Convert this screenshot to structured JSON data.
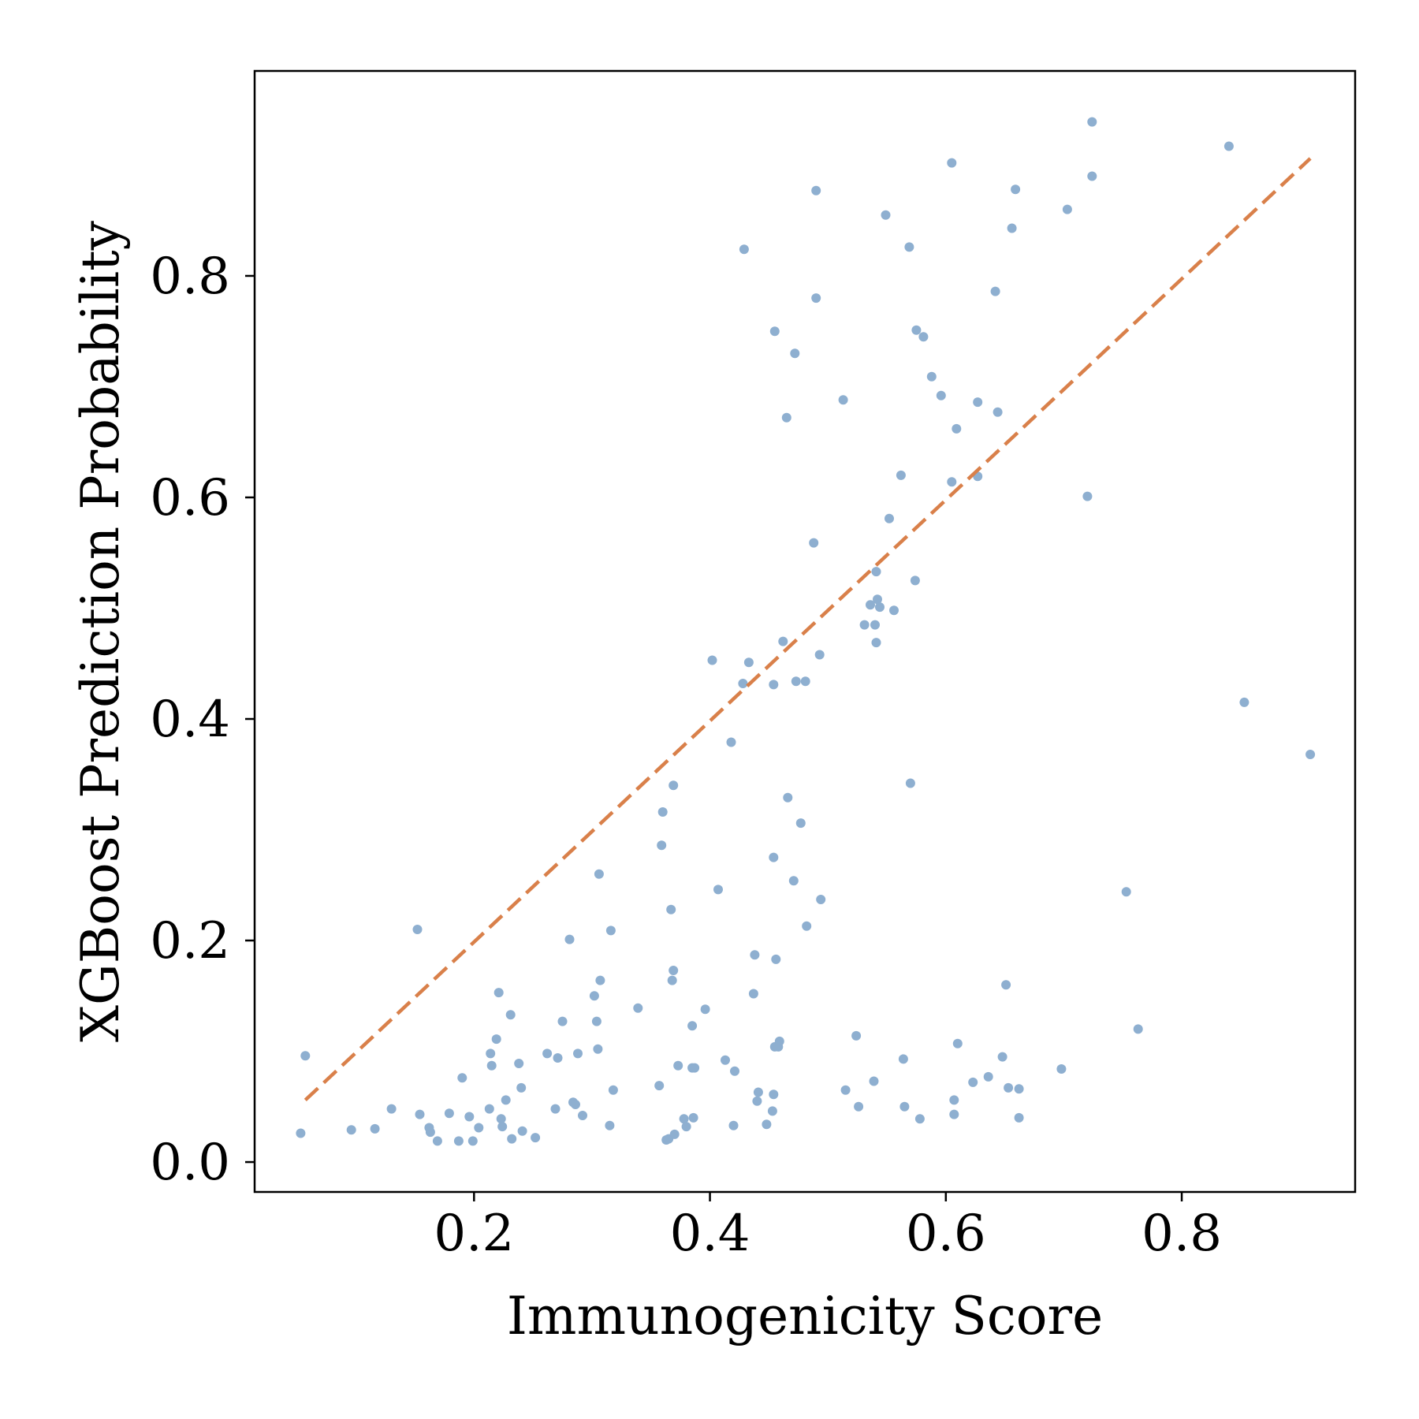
{
  "chart_data": {
    "type": "scatter",
    "title": "",
    "xlabel": "Immunogenicity Score",
    "ylabel": "XGBoost Prediction Probability",
    "xlim": [
      0.014,
      0.947
    ],
    "ylim": [
      -0.027,
      0.985
    ],
    "xticks": [
      0.2,
      0.4,
      0.6,
      0.8
    ],
    "yticks": [
      0.0,
      0.2,
      0.4,
      0.6,
      0.8
    ],
    "xtick_labels": [
      "0.2",
      "0.4",
      "0.6",
      "0.8"
    ],
    "ytick_labels": [
      "0.0",
      "0.2",
      "0.4",
      "0.6",
      "0.8"
    ],
    "grid": false,
    "legend": "none",
    "colors": {
      "points": "#8eafd0",
      "trend": "#d9804a",
      "axes": "#000000"
    },
    "trend_line": {
      "style": "dashed",
      "x": [
        0.057,
        0.909
      ],
      "y": [
        0.056,
        0.906
      ]
    },
    "series": [
      {
        "values": [
          [
            0.057,
            0.096
          ],
          [
            0.053,
            0.026
          ],
          [
            0.096,
            0.029
          ],
          [
            0.116,
            0.03
          ],
          [
            0.13,
            0.048
          ],
          [
            0.152,
            0.21
          ],
          [
            0.154,
            0.043
          ],
          [
            0.162,
            0.031
          ],
          [
            0.163,
            0.027
          ],
          [
            0.169,
            0.019
          ],
          [
            0.179,
            0.044
          ],
          [
            0.187,
            0.019
          ],
          [
            0.19,
            0.076
          ],
          [
            0.196,
            0.041
          ],
          [
            0.199,
            0.019
          ],
          [
            0.204,
            0.031
          ],
          [
            0.213,
            0.048
          ],
          [
            0.214,
            0.098
          ],
          [
            0.215,
            0.087
          ],
          [
            0.219,
            0.111
          ],
          [
            0.221,
            0.153
          ],
          [
            0.223,
            0.039
          ],
          [
            0.224,
            0.032
          ],
          [
            0.227,
            0.056
          ],
          [
            0.231,
            0.133
          ],
          [
            0.232,
            0.021
          ],
          [
            0.238,
            0.089
          ],
          [
            0.24,
            0.067
          ],
          [
            0.241,
            0.028
          ],
          [
            0.252,
            0.022
          ],
          [
            0.262,
            0.098
          ],
          [
            0.269,
            0.048
          ],
          [
            0.271,
            0.094
          ],
          [
            0.275,
            0.127
          ],
          [
            0.281,
            0.201
          ],
          [
            0.284,
            0.054
          ],
          [
            0.286,
            0.052
          ],
          [
            0.288,
            0.098
          ],
          [
            0.292,
            0.042
          ],
          [
            0.302,
            0.15
          ],
          [
            0.304,
            0.127
          ],
          [
            0.305,
            0.102
          ],
          [
            0.306,
            0.26
          ],
          [
            0.307,
            0.164
          ],
          [
            0.315,
            0.033
          ],
          [
            0.316,
            0.209
          ],
          [
            0.318,
            0.065
          ],
          [
            0.339,
            0.139
          ],
          [
            0.357,
            0.069
          ],
          [
            0.359,
            0.286
          ],
          [
            0.36,
            0.316
          ],
          [
            0.363,
            0.02
          ],
          [
            0.365,
            0.021
          ],
          [
            0.367,
            0.228
          ],
          [
            0.368,
            0.164
          ],
          [
            0.369,
            0.34
          ],
          [
            0.369,
            0.173
          ],
          [
            0.37,
            0.025
          ],
          [
            0.373,
            0.087
          ],
          [
            0.378,
            0.039
          ],
          [
            0.38,
            0.032
          ],
          [
            0.385,
            0.123
          ],
          [
            0.385,
            0.085
          ],
          [
            0.386,
            0.04
          ],
          [
            0.387,
            0.085
          ],
          [
            0.396,
            0.138
          ],
          [
            0.402,
            0.453
          ],
          [
            0.407,
            0.246
          ],
          [
            0.413,
            0.092
          ],
          [
            0.418,
            0.379
          ],
          [
            0.42,
            0.033
          ],
          [
            0.421,
            0.082
          ],
          [
            0.428,
            0.432
          ],
          [
            0.429,
            0.824
          ],
          [
            0.433,
            0.451
          ],
          [
            0.437,
            0.152
          ],
          [
            0.438,
            0.187
          ],
          [
            0.44,
            0.055
          ],
          [
            0.441,
            0.063
          ],
          [
            0.448,
            0.034
          ],
          [
            0.453,
            0.046
          ],
          [
            0.454,
            0.061
          ],
          [
            0.454,
            0.275
          ],
          [
            0.454,
            0.431
          ],
          [
            0.455,
            0.75
          ],
          [
            0.455,
            0.104
          ],
          [
            0.456,
            0.183
          ],
          [
            0.458,
            0.104
          ],
          [
            0.459,
            0.109
          ],
          [
            0.462,
            0.47
          ],
          [
            0.465,
            0.672
          ],
          [
            0.466,
            0.329
          ],
          [
            0.471,
            0.254
          ],
          [
            0.472,
            0.73
          ],
          [
            0.473,
            0.434
          ],
          [
            0.477,
            0.306
          ],
          [
            0.481,
            0.434
          ],
          [
            0.482,
            0.213
          ],
          [
            0.488,
            0.559
          ],
          [
            0.49,
            0.877
          ],
          [
            0.49,
            0.78
          ],
          [
            0.493,
            0.458
          ],
          [
            0.494,
            0.237
          ],
          [
            0.513,
            0.688
          ],
          [
            0.515,
            0.065
          ],
          [
            0.524,
            0.114
          ],
          [
            0.526,
            0.05
          ],
          [
            0.531,
            0.485
          ],
          [
            0.536,
            0.503
          ],
          [
            0.539,
            0.073
          ],
          [
            0.54,
            0.485
          ],
          [
            0.541,
            0.533
          ],
          [
            0.541,
            0.469
          ],
          [
            0.542,
            0.508
          ],
          [
            0.544,
            0.501
          ],
          [
            0.549,
            0.855
          ],
          [
            0.552,
            0.581
          ],
          [
            0.556,
            0.498
          ],
          [
            0.562,
            0.62
          ],
          [
            0.564,
            0.093
          ],
          [
            0.565,
            0.05
          ],
          [
            0.569,
            0.826
          ],
          [
            0.57,
            0.342
          ],
          [
            0.574,
            0.525
          ],
          [
            0.575,
            0.751
          ],
          [
            0.578,
            0.039
          ],
          [
            0.581,
            0.745
          ],
          [
            0.588,
            0.709
          ],
          [
            0.596,
            0.692
          ],
          [
            0.605,
            0.902
          ],
          [
            0.605,
            0.614
          ],
          [
            0.607,
            0.056
          ],
          [
            0.607,
            0.043
          ],
          [
            0.609,
            0.662
          ],
          [
            0.61,
            0.107
          ],
          [
            0.623,
            0.072
          ],
          [
            0.627,
            0.686
          ],
          [
            0.627,
            0.619
          ],
          [
            0.636,
            0.077
          ],
          [
            0.642,
            0.786
          ],
          [
            0.644,
            0.677
          ],
          [
            0.648,
            0.095
          ],
          [
            0.651,
            0.16
          ],
          [
            0.653,
            0.067
          ],
          [
            0.656,
            0.843
          ],
          [
            0.659,
            0.878
          ],
          [
            0.662,
            0.04
          ],
          [
            0.662,
            0.066
          ],
          [
            0.698,
            0.084
          ],
          [
            0.703,
            0.86
          ],
          [
            0.72,
            0.601
          ],
          [
            0.724,
            0.939
          ],
          [
            0.724,
            0.89
          ],
          [
            0.753,
            0.244
          ],
          [
            0.763,
            0.12
          ],
          [
            0.84,
            0.917
          ],
          [
            0.853,
            0.415
          ],
          [
            0.909,
            0.368
          ]
        ]
      }
    ]
  }
}
